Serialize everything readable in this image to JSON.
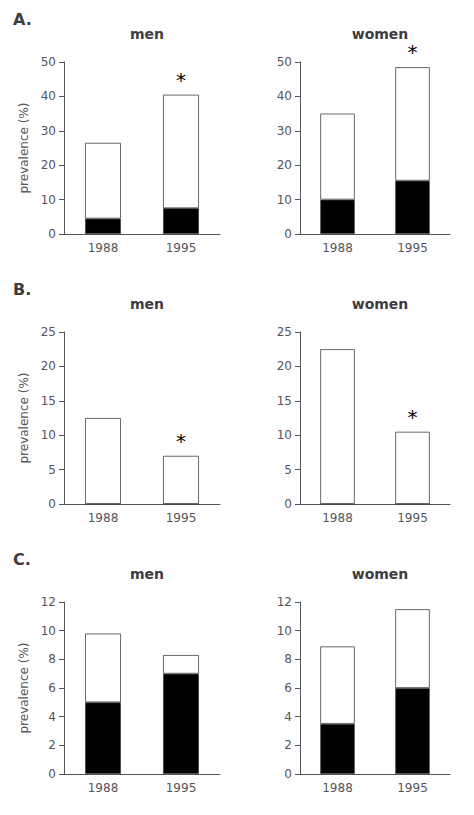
{
  "chart_data": [
    {
      "type": "bar",
      "stacked": true,
      "title": "men",
      "ylabel": "prevalence (%)",
      "categories": [
        "1988",
        "1995"
      ],
      "series": [
        {
          "color": "#000000",
          "values": [
            4.5,
            7.5
          ]
        },
        {
          "color": "#ffffff",
          "values": [
            22.0,
            33.0
          ]
        }
      ],
      "ylim": [
        0,
        50
      ],
      "yticks": [
        0,
        10,
        20,
        30,
        40,
        50
      ],
      "grid": false,
      "annotations": [
        {
          "text": "A."
        },
        {
          "text": "*",
          "category": "1995"
        }
      ]
    },
    {
      "type": "bar",
      "stacked": true,
      "title": "women",
      "categories": [
        "1988",
        "1995"
      ],
      "series": [
        {
          "color": "#000000",
          "values": [
            10.0,
            15.5
          ]
        },
        {
          "color": "#ffffff",
          "values": [
            25.0,
            33.0
          ]
        }
      ],
      "ylim": [
        0,
        50
      ],
      "yticks": [
        0,
        10,
        20,
        30,
        40,
        50
      ],
      "grid": false,
      "annotations": [
        {
          "text": "*",
          "category": "1995"
        }
      ]
    },
    {
      "type": "bar",
      "stacked": true,
      "title": "men",
      "ylabel": "prevalence (%)",
      "categories": [
        "1988",
        "1995"
      ],
      "series": [
        {
          "color": "#000000",
          "values": [
            0,
            0
          ]
        },
        {
          "color": "#ffffff",
          "values": [
            12.5,
            7.0
          ]
        }
      ],
      "ylim": [
        0,
        25
      ],
      "yticks": [
        0,
        5,
        10,
        15,
        20,
        25
      ],
      "grid": false,
      "annotations": [
        {
          "text": "B."
        },
        {
          "text": "*",
          "category": "1995"
        }
      ]
    },
    {
      "type": "bar",
      "stacked": true,
      "title": "women",
      "categories": [
        "1988",
        "1995"
      ],
      "series": [
        {
          "color": "#000000",
          "values": [
            0,
            0
          ]
        },
        {
          "color": "#ffffff",
          "values": [
            22.5,
            10.5
          ]
        }
      ],
      "ylim": [
        0,
        25
      ],
      "yticks": [
        0,
        5,
        10,
        15,
        20,
        25
      ],
      "grid": false,
      "annotations": [
        {
          "text": "*",
          "category": "1995"
        }
      ]
    },
    {
      "type": "bar",
      "stacked": true,
      "title": "men",
      "ylabel": "prevalence (%)",
      "categories": [
        "1988",
        "1995"
      ],
      "series": [
        {
          "color": "#000000",
          "values": [
            5.0,
            7.0
          ]
        },
        {
          "color": "#ffffff",
          "values": [
            4.8,
            1.3
          ]
        }
      ],
      "ylim": [
        0,
        12
      ],
      "yticks": [
        0,
        2,
        4,
        6,
        8,
        10,
        12
      ],
      "grid": false,
      "annotations": [
        {
          "text": "C."
        }
      ]
    },
    {
      "type": "bar",
      "stacked": true,
      "title": "women",
      "categories": [
        "1988",
        "1995"
      ],
      "series": [
        {
          "color": "#000000",
          "values": [
            3.5,
            6.0
          ]
        },
        {
          "color": "#ffffff",
          "values": [
            5.4,
            5.5
          ]
        }
      ],
      "ylim": [
        0,
        12
      ],
      "yticks": [
        0,
        2,
        4,
        6,
        8,
        10,
        12
      ],
      "grid": false,
      "annotations": []
    }
  ]
}
